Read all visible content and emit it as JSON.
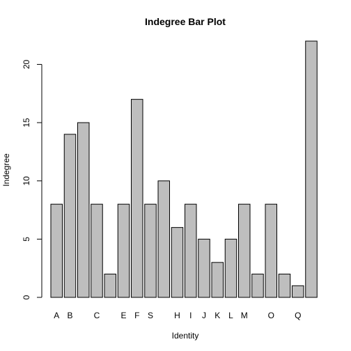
{
  "chart_data": {
    "type": "bar",
    "title": "Indegree Bar Plot",
    "xlabel": "Identity",
    "ylabel": "Indegree",
    "categories": [
      "A",
      "B",
      "",
      "C",
      "",
      "E",
      "F",
      "S",
      "",
      "H",
      "I",
      "J",
      "K",
      "L",
      "M",
      "",
      "O",
      "",
      "Q",
      ""
    ],
    "values": [
      8,
      14,
      15,
      8,
      2,
      8,
      17,
      8,
      10,
      6,
      8,
      5,
      3,
      5,
      8,
      2,
      8,
      2,
      1,
      22
    ],
    "ylim": [
      0,
      22
    ],
    "yticks": [
      0,
      5,
      10,
      15,
      20
    ],
    "bar_color": "#bebebe",
    "border_color": "#000000",
    "grid": false,
    "legend": "none"
  }
}
